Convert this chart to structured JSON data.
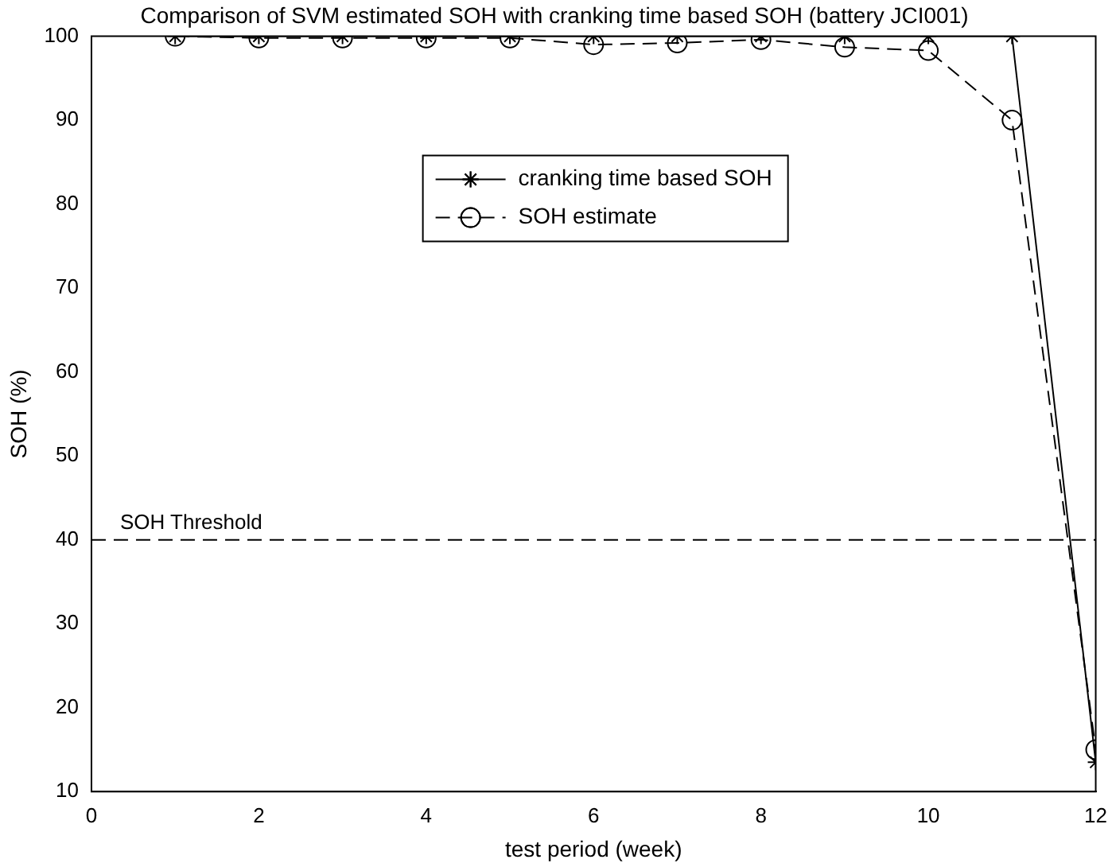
{
  "chart_data": {
    "type": "line",
    "title": "Comparison of SVM estimated SOH with cranking time based SOH (battery JCI001)",
    "xlabel": "test period (week)",
    "ylabel": "SOH (%)",
    "x": [
      1,
      2,
      3,
      4,
      5,
      6,
      7,
      8,
      9,
      10,
      11,
      12
    ],
    "series": [
      {
        "name": "cranking time based SOH",
        "color": "#000000",
        "marker": "cross",
        "line_style": "solid",
        "values": [
          100,
          100,
          100,
          100,
          100,
          100,
          100,
          100,
          100,
          100,
          100,
          13.5
        ]
      },
      {
        "name": "SOH estimate",
        "color": "#000000",
        "marker": "circle",
        "line_style": "dashed",
        "values": [
          100,
          99.8,
          99.8,
          99.8,
          99.8,
          99,
          99.2,
          99.6,
          98.7,
          98.3,
          90,
          15
        ]
      }
    ],
    "xlim": [
      0,
      12
    ],
    "xticks": [
      0,
      2,
      4,
      6,
      8,
      10,
      12
    ],
    "ylim": [
      10,
      100
    ],
    "yticks": [
      10,
      20,
      30,
      40,
      50,
      60,
      70,
      80,
      90,
      100
    ],
    "ref_lines": [
      {
        "axis": "y",
        "value": 40,
        "label": "SOH Threshold",
        "line_style": "dashed",
        "color": "#000000"
      }
    ],
    "grid": false,
    "legend": "top"
  }
}
